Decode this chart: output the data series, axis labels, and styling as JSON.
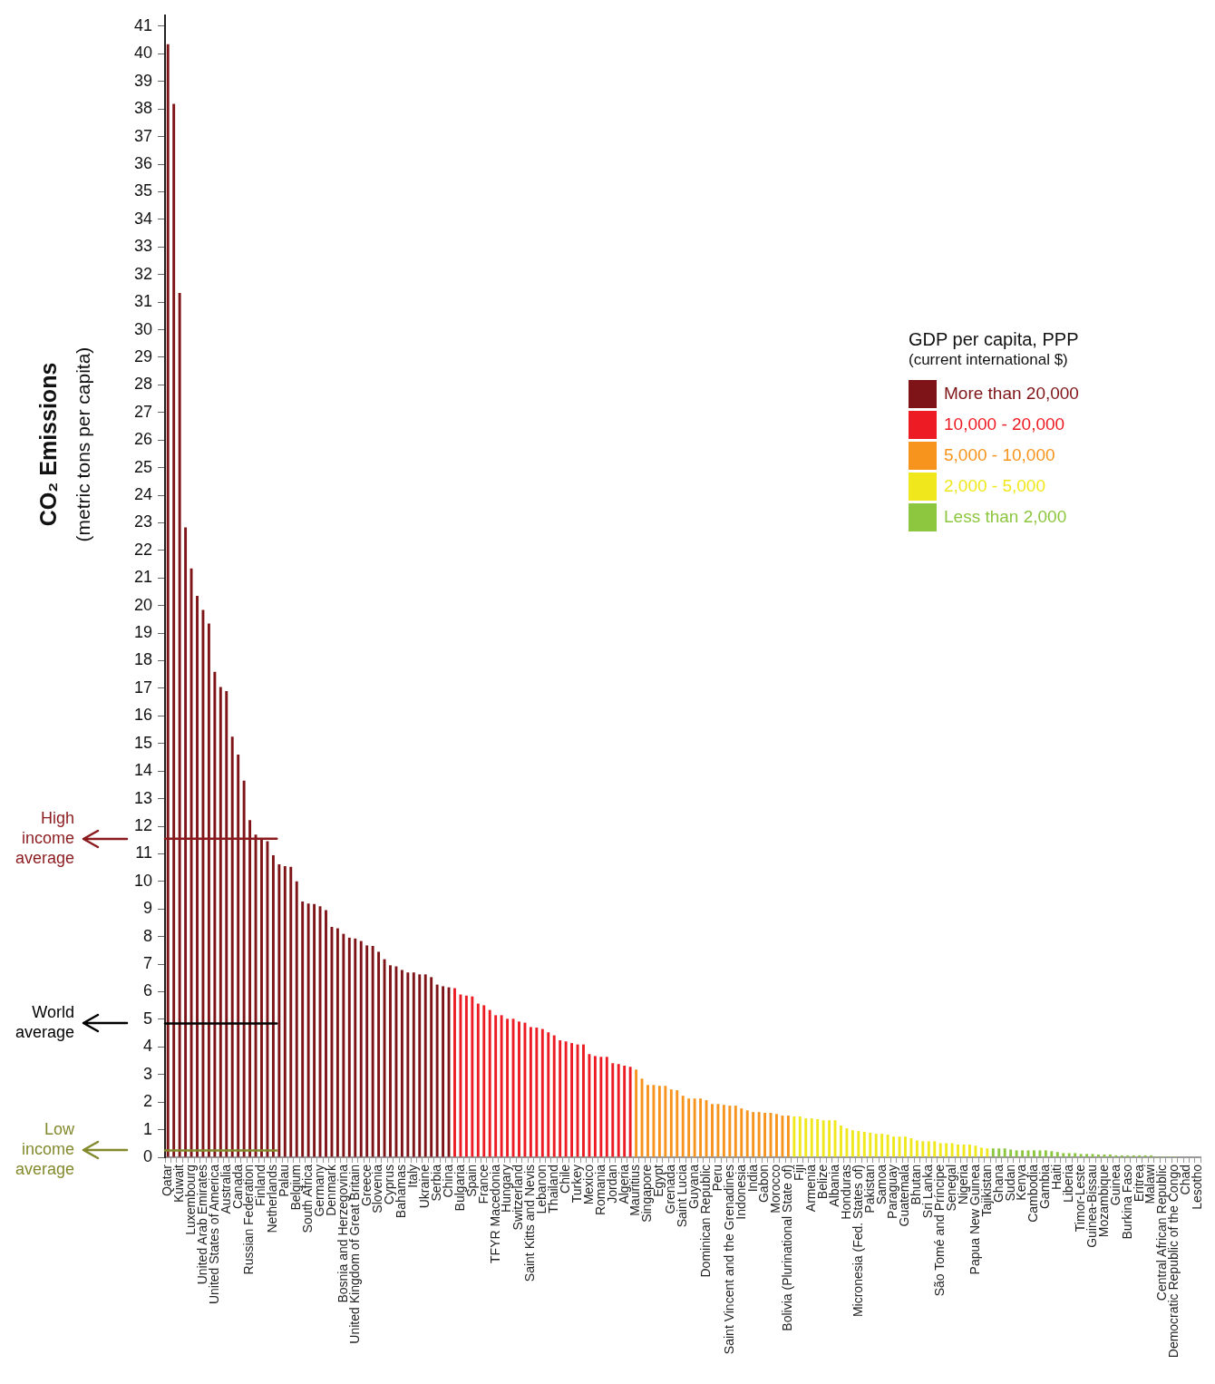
{
  "chart_data": {
    "type": "bar",
    "ylabel": "CO₂ Emissions\n(metric tons per capita)",
    "legend_title": "GDP per capita, PPP\n(current international $)",
    "legend": "right",
    "ylim": [
      0,
      41.4
    ],
    "yticks": [
      0,
      1,
      2,
      3,
      4,
      5,
      6,
      7,
      8,
      9,
      10,
      11,
      12,
      13,
      14,
      15,
      16,
      17,
      18,
      19,
      20,
      21,
      22,
      23,
      24,
      25,
      26,
      27,
      28,
      29,
      30,
      31,
      32,
      33,
      34,
      35,
      36,
      37,
      38,
      39,
      40,
      41
    ],
    "categories": [
      "Qatar",
      null,
      "Kuwait",
      null,
      "Luxembourg",
      null,
      "United Arab Emirates",
      null,
      "United States of America",
      null,
      "Australia",
      null,
      "Canada",
      null,
      "Russian Federation",
      null,
      "Finland",
      null,
      "Netherlands",
      null,
      "Palau",
      null,
      "Belgium",
      null,
      "South Africa",
      null,
      "Germany",
      null,
      "Denmark",
      null,
      "Bosnia and Herzegovina",
      null,
      "United Kingdom of Great Britain",
      null,
      "Greece",
      null,
      "Slovenia",
      null,
      "Cyprus",
      null,
      "Bahamas",
      null,
      "Italy",
      null,
      "Ukraine",
      null,
      "Serbia",
      null,
      "China",
      null,
      "Bulgaria",
      null,
      "Spain",
      null,
      "France",
      null,
      "TFYR Macedonia",
      null,
      "Hungary",
      null,
      "Switzerland",
      null,
      "Saint Kitts and Nevis",
      null,
      "Lebanon",
      null,
      "Thailand",
      null,
      "Chile",
      null,
      "Turkey",
      null,
      "Mexico",
      null,
      "Romania",
      null,
      "Jordan",
      null,
      "Algeria",
      null,
      "Mauritius",
      null,
      "Singapore",
      null,
      "Egypt",
      null,
      "Grenada",
      null,
      "Saint Lucia",
      null,
      "Guyana",
      null,
      "Dominican Republic",
      null,
      "Peru",
      null,
      "Saint Vincent and the Grenadines",
      null,
      "Indonesia",
      null,
      "India",
      null,
      "Gabon",
      null,
      "Morocco",
      null,
      "Bolivia (Plurinational State of)",
      null,
      "Fiji",
      null,
      "Armenia",
      null,
      "Belize",
      null,
      "Albania",
      null,
      "Honduras",
      null,
      "Micronesia (Fed. States of)",
      null,
      "Pakistan",
      null,
      "Samoa",
      null,
      "Paraguay",
      null,
      "Guatemala",
      null,
      "Bhutan",
      null,
      "Sri Lanka",
      null,
      "São Tomé and Príncipe",
      null,
      "Senegal",
      null,
      "Nigeria",
      null,
      "Papua New Guinea",
      null,
      "Tajikistan",
      null,
      "Ghana",
      null,
      "Sudan",
      null,
      "Kenya",
      null,
      "Cambodia",
      null,
      "Gambia",
      null,
      "Haiti",
      null,
      "Liberia",
      null,
      "Timor-Leste",
      null,
      "Guinea-Bissau",
      null,
      "Mozambique",
      null,
      "Guinea",
      null,
      "Burkina Faso",
      null,
      "Eritrea",
      null,
      "Malawi",
      null,
      "Central African Republic",
      null,
      "Democratic Republic of the Congo",
      null,
      "Chad",
      null,
      "Lesotho"
    ],
    "series": [
      {
        "name": "More than 20,000",
        "color": "#7f1418",
        "values": [
          40.35,
          38.19,
          31.33,
          22.83,
          21.35,
          20.35,
          19.84,
          19.35,
          17.6,
          17.05,
          16.9,
          15.25,
          14.6,
          13.65,
          12.22,
          11.7,
          11.53,
          11.46,
          10.95,
          10.62,
          10.55,
          10.53,
          10.0,
          9.27,
          9.2,
          9.18,
          9.1,
          8.96,
          8.35,
          8.3,
          8.1,
          7.96,
          7.93,
          7.84,
          7.68,
          7.66,
          7.45,
          7.18,
          6.96,
          6.92,
          6.79,
          6.7,
          6.7,
          6.63,
          6.63,
          6.53,
          6.26,
          6.2,
          6.16,
          null,
          null,
          null,
          null,
          null,
          null,
          null,
          null,
          null,
          null,
          null,
          null,
          null,
          null,
          null,
          null,
          null,
          null,
          null,
          null,
          null,
          null,
          null,
          null,
          null,
          null,
          null,
          null,
          null,
          null,
          null,
          null,
          null,
          null,
          null,
          null,
          null,
          null,
          null,
          null,
          null,
          null,
          null,
          null,
          null,
          null,
          null,
          null,
          null,
          null,
          null,
          null,
          null,
          null,
          null,
          null,
          null,
          null,
          null,
          null,
          null,
          null,
          null,
          null,
          null,
          null,
          null,
          null,
          null,
          null,
          null,
          null,
          null,
          null,
          null,
          null,
          null,
          null,
          null,
          null,
          null,
          null,
          null,
          null,
          null,
          null,
          null,
          null,
          null,
          null,
          null,
          null,
          null,
          null,
          null,
          null,
          null,
          null,
          null,
          null,
          null,
          null,
          null,
          null,
          null,
          null,
          null,
          null,
          null,
          null,
          null,
          null,
          null,
          null,
          null,
          null,
          null,
          null,
          null,
          null,
          null,
          null,
          null,
          null,
          null,
          null,
          null,
          null
        ]
      },
      {
        "name": "10,000 - 20,000",
        "color": "#ed1c24",
        "values": [
          null,
          null,
          null,
          null,
          null,
          null,
          null,
          null,
          null,
          null,
          null,
          null,
          null,
          null,
          null,
          null,
          null,
          null,
          null,
          null,
          null,
          null,
          null,
          null,
          null,
          null,
          null,
          null,
          null,
          null,
          null,
          null,
          null,
          null,
          null,
          null,
          null,
          null,
          null,
          null,
          null,
          null,
          null,
          null,
          null,
          null,
          null,
          null,
          null,
          6.13,
          5.9,
          5.86,
          5.83,
          5.57,
          5.51,
          5.34,
          5.15,
          5.15,
          5.02,
          5.02,
          4.92,
          4.88,
          4.72,
          4.7,
          4.65,
          4.53,
          4.42,
          4.24,
          4.2,
          4.14,
          4.09,
          4.09,
          3.74,
          3.67,
          3.64,
          3.64,
          3.41,
          3.38,
          3.32,
          3.28,
          null,
          null,
          null,
          null,
          null,
          null,
          null,
          null,
          null,
          null,
          null,
          null,
          null,
          null,
          null,
          null,
          null,
          null,
          null,
          null,
          null,
          null,
          null,
          null,
          null,
          null,
          null,
          null,
          null,
          null,
          null,
          null,
          null,
          null,
          null,
          null,
          null,
          null,
          null,
          null,
          null,
          null,
          null,
          null,
          null,
          null,
          null,
          null,
          null,
          null,
          null,
          null,
          null,
          null,
          null,
          null,
          null,
          null,
          null,
          null,
          null,
          null,
          null,
          null,
          null,
          null,
          null,
          null,
          null,
          null,
          null,
          null,
          null,
          null,
          null,
          null,
          null,
          null,
          null,
          null,
          null,
          null,
          null,
          null,
          null,
          null,
          null,
          null,
          null,
          null,
          null,
          null,
          null,
          null,
          null,
          null,
          null
        ]
      },
      {
        "name": "5,000 - 10,000",
        "color": "#f7941d",
        "values": [
          null,
          null,
          null,
          null,
          null,
          null,
          null,
          null,
          null,
          null,
          null,
          null,
          null,
          null,
          null,
          null,
          null,
          null,
          null,
          null,
          null,
          null,
          null,
          null,
          null,
          null,
          null,
          null,
          null,
          null,
          null,
          null,
          null,
          null,
          null,
          null,
          null,
          null,
          null,
          null,
          null,
          null,
          null,
          null,
          null,
          null,
          null,
          null,
          null,
          null,
          null,
          null,
          null,
          null,
          null,
          null,
          null,
          null,
          null,
          null,
          null,
          null,
          null,
          null,
          null,
          null,
          null,
          null,
          null,
          null,
          null,
          null,
          null,
          null,
          null,
          null,
          null,
          null,
          null,
          null,
          3.18,
          2.85,
          2.62,
          2.62,
          2.59,
          2.59,
          2.46,
          2.43,
          2.23,
          2.13,
          2.13,
          2.13,
          2.07,
          1.93,
          1.93,
          1.9,
          1.87,
          1.87,
          1.77,
          1.7,
          1.64,
          1.64,
          1.61,
          1.61,
          1.57,
          1.51,
          1.51,
          null,
          null,
          null,
          null,
          null,
          null,
          null,
          null,
          null,
          null,
          null,
          null,
          null,
          null,
          null,
          null,
          null,
          null,
          null,
          null,
          null,
          null,
          null,
          null,
          null,
          null,
          null,
          null,
          null,
          null,
          null,
          null,
          null,
          null,
          null,
          null,
          null,
          null,
          null,
          null,
          null,
          null,
          null,
          null,
          null,
          null,
          null,
          null,
          null,
          null,
          null,
          null,
          null,
          null,
          null,
          null,
          null,
          null,
          null,
          null,
          null,
          null,
          null,
          null,
          null,
          null,
          null,
          null,
          null,
          null
        ]
      },
      {
        "name": "2,000 - 5,000",
        "color": "#f0e81c",
        "values": [
          null,
          null,
          null,
          null,
          null,
          null,
          null,
          null,
          null,
          null,
          null,
          null,
          null,
          null,
          null,
          null,
          null,
          null,
          null,
          null,
          null,
          null,
          null,
          null,
          null,
          null,
          null,
          null,
          null,
          null,
          null,
          null,
          null,
          null,
          null,
          null,
          null,
          null,
          null,
          null,
          null,
          null,
          null,
          null,
          null,
          null,
          null,
          null,
          null,
          null,
          null,
          null,
          null,
          null,
          null,
          null,
          null,
          null,
          null,
          null,
          null,
          null,
          null,
          null,
          null,
          null,
          null,
          null,
          null,
          null,
          null,
          null,
          null,
          null,
          null,
          null,
          null,
          null,
          null,
          null,
          null,
          null,
          null,
          null,
          null,
          null,
          null,
          null,
          null,
          null,
          null,
          null,
          null,
          null,
          null,
          null,
          null,
          null,
          null,
          null,
          null,
          null,
          null,
          null,
          null,
          null,
          null,
          1.48,
          1.48,
          1.41,
          1.41,
          1.38,
          1.34,
          1.34,
          1.34,
          1.15,
          1.05,
          0.98,
          0.95,
          0.92,
          0.89,
          0.85,
          0.85,
          0.82,
          0.75,
          0.75,
          0.75,
          0.69,
          0.61,
          0.58,
          0.58,
          0.58,
          0.51,
          0.51,
          0.51,
          0.46,
          0.46,
          0.46,
          0.42,
          0.35,
          0.32,
          null,
          null,
          null,
          null,
          null,
          null,
          null,
          null,
          null,
          null,
          null,
          null,
          null,
          null,
          null,
          null,
          null,
          null,
          null,
          null,
          null,
          null,
          null,
          null,
          null,
          null,
          null,
          null,
          null,
          null,
          null,
          null,
          null,
          null,
          null,
          null
        ]
      },
      {
        "name": "Less than 2,000",
        "color": "#8dc63f",
        "values": [
          null,
          null,
          null,
          null,
          null,
          null,
          null,
          null,
          null,
          null,
          null,
          null,
          null,
          null,
          null,
          null,
          null,
          null,
          null,
          null,
          null,
          null,
          null,
          null,
          null,
          null,
          null,
          null,
          null,
          null,
          null,
          null,
          null,
          null,
          null,
          null,
          null,
          null,
          null,
          null,
          null,
          null,
          null,
          null,
          null,
          null,
          null,
          null,
          null,
          null,
          null,
          null,
          null,
          null,
          null,
          null,
          null,
          null,
          null,
          null,
          null,
          null,
          null,
          null,
          null,
          null,
          null,
          null,
          null,
          null,
          null,
          null,
          null,
          null,
          null,
          null,
          null,
          null,
          null,
          null,
          null,
          null,
          null,
          null,
          null,
          null,
          null,
          null,
          null,
          null,
          null,
          null,
          null,
          null,
          null,
          null,
          null,
          null,
          null,
          null,
          null,
          null,
          null,
          null,
          null,
          null,
          null,
          null,
          null,
          null,
          null,
          null,
          null,
          null,
          null,
          null,
          null,
          null,
          null,
          null,
          null,
          null,
          null,
          null,
          null,
          null,
          null,
          null,
          null,
          null,
          null,
          null,
          null,
          null,
          null,
          null,
          null,
          null,
          null,
          null,
          null,
          0.32,
          0.32,
          0.32,
          0.28,
          0.25,
          0.25,
          0.25,
          0.25,
          0.25,
          0.25,
          0.22,
          0.19,
          0.15,
          0.15,
          0.15,
          0.12,
          0.12,
          0.12,
          0.1,
          0.1,
          0.1,
          0.07,
          0.07,
          0.07,
          0.07,
          0.07,
          0.07,
          0.07,
          0.03,
          0.03,
          0.03,
          0.03,
          0.02,
          0.02,
          null,
          null
        ]
      }
    ],
    "ref_lines": [
      {
        "axis": "y",
        "value": 11.55,
        "label": "High income average",
        "color": "#8b1a1e"
      },
      {
        "axis": "y",
        "value": 4.85,
        "label": "World average",
        "color": "#000000"
      },
      {
        "axis": "y",
        "value": 0.25,
        "label": "Low income average",
        "color": "#838a2d"
      }
    ]
  }
}
